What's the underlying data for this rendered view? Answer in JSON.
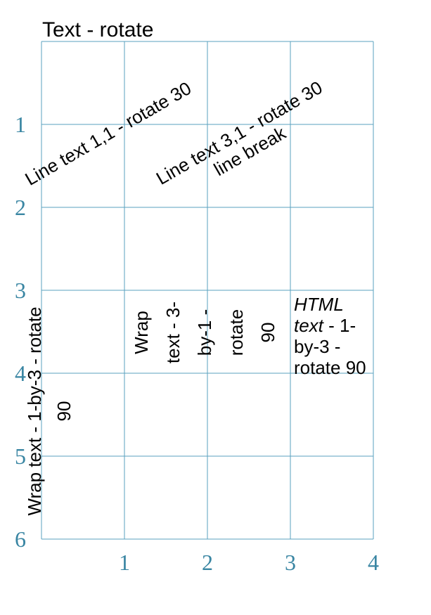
{
  "title": "Text - rotate",
  "colors": {
    "grid": "#5aa2bf",
    "axis_labels": "#3a86a3",
    "text": "#000000"
  },
  "grid": {
    "columns": 4,
    "rows": 6
  },
  "x_axis_labels": [
    "1",
    "2",
    "3",
    "4"
  ],
  "y_axis_labels": [
    "1",
    "2",
    "3",
    "4",
    "5",
    "6"
  ],
  "texts": {
    "line_1_1": "Line text 1,1 - rotate 30",
    "line_3_1_a": "Line text 3,1 - rotate 30",
    "line_3_1_b": "line break",
    "wrap_1_by_3": "Wrap text - 1-by-3 - rotate 90",
    "wrap_3_by_1": "Wrap text - 3-by-1 - rotate 90",
    "html_italic": "HTML text",
    "html_rest": " - 1-by-3 - rotate 90"
  }
}
